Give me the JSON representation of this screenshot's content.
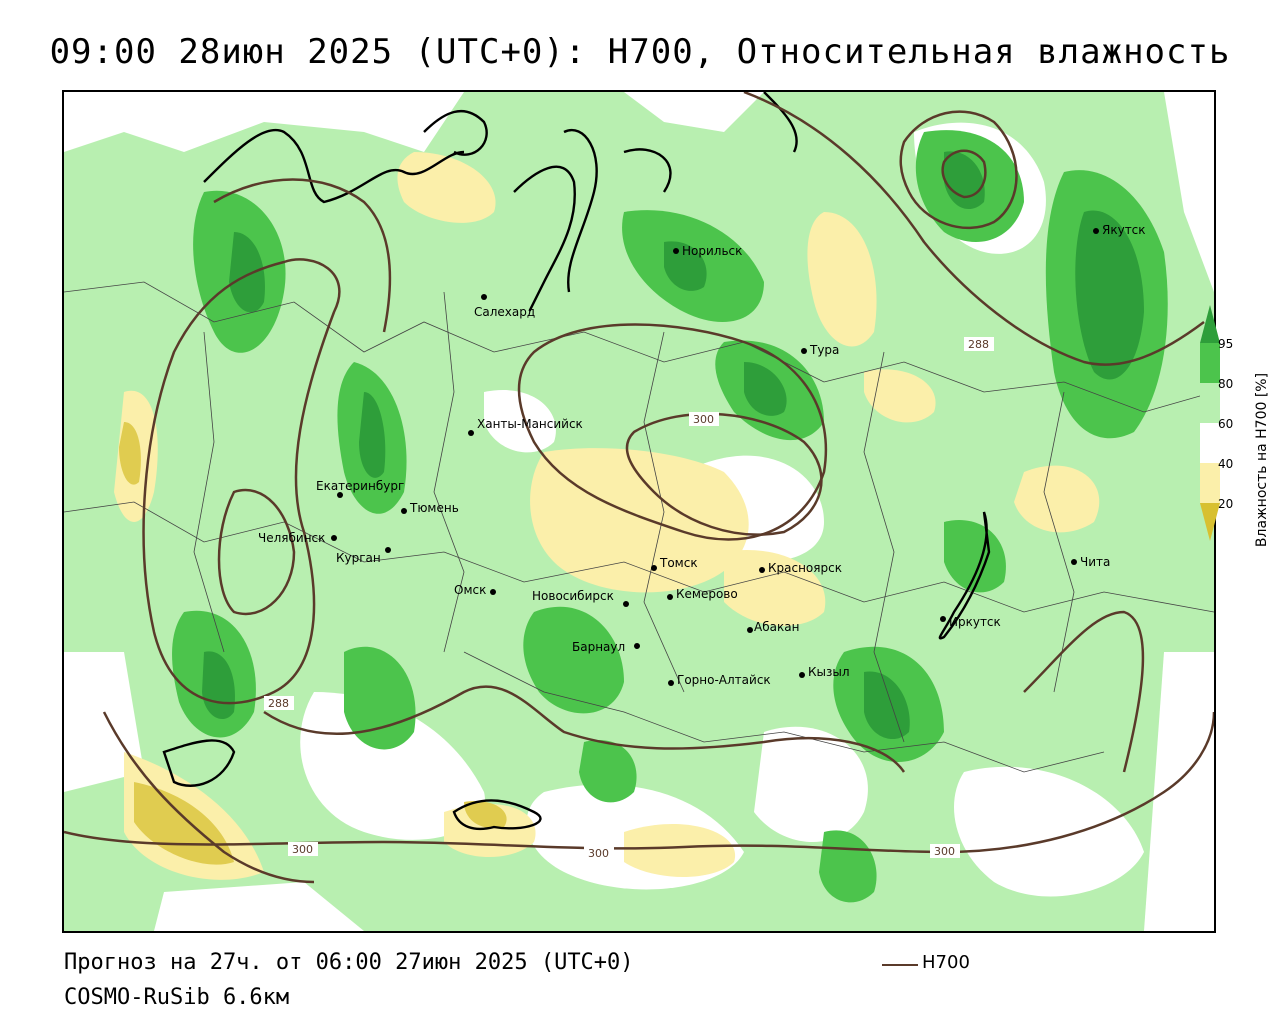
{
  "title": "09:00 28июн 2025 (UTC+0): H700, Относительная влажность",
  "footer": {
    "forecast": "Прогноз на 27ч. от 06:00 27июн 2025 (UTC+0)",
    "model": "COSMO-RuSib 6.6км"
  },
  "legend": {
    "line_label": "H700",
    "line_color": "#5a3a2a"
  },
  "colorbar": {
    "title": "Влажность на H700 [%]",
    "ticks": [
      "95",
      "80",
      "60",
      "40",
      "20"
    ],
    "colors": {
      "above_95": "#2e9e3a",
      "c80_95": "#4cc44c",
      "c60_80": "#b8efb0",
      "c40_60": "#ffffff",
      "c20_40": "#fbefaa",
      "below_20": "#d8c030"
    }
  },
  "contour_labels": [
    "288",
    "300",
    "288",
    "300",
    "300",
    "300"
  ],
  "cities": [
    {
      "name": "Норильск"
    },
    {
      "name": "Якутск"
    },
    {
      "name": "Салехард"
    },
    {
      "name": "Тура"
    },
    {
      "name": "Ханты-Мансийск"
    },
    {
      "name": "Екатеринбург"
    },
    {
      "name": "Тюмень"
    },
    {
      "name": "Челябинск"
    },
    {
      "name": "Курган"
    },
    {
      "name": "Омск"
    },
    {
      "name": "Новосибирск"
    },
    {
      "name": "Томск"
    },
    {
      "name": "Кемерово"
    },
    {
      "name": "Красноярск"
    },
    {
      "name": "Барнаул"
    },
    {
      "name": "Абакан"
    },
    {
      "name": "Горно-Алтайск"
    },
    {
      "name": "Кызыл"
    },
    {
      "name": "Иркутск"
    },
    {
      "name": "Чита"
    }
  ]
}
